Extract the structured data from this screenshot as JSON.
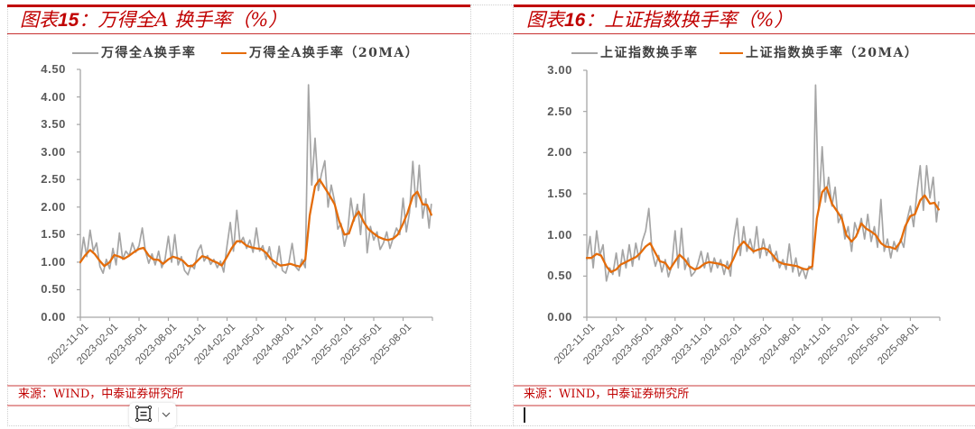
{
  "panels": [
    {
      "title_prefix": "图表",
      "title_number": "15",
      "title_rest": "：万得全A 换手率（%）",
      "source": "来源：WIND，中泰证券研究所"
    },
    {
      "title_prefix": "图表",
      "title_number": "16",
      "title_rest": "：上证指数换手率（%）",
      "source": "来源：WIND，中泰证券研究所"
    }
  ],
  "floating_toolbar": {
    "icons": [
      "text-wrap-icon",
      "chevron-down-icon"
    ]
  },
  "colors": {
    "accent_red": "#c00000",
    "series_gray": "#a5a5a5",
    "series_orange": "#e46c0a",
    "axis": "#a6a6a6"
  },
  "chart_data": [
    {
      "type": "line",
      "title": "图表15：万得全A 换手率（%）",
      "xlabel": "",
      "ylabel": "",
      "ylim": [
        0,
        4.5
      ],
      "grid": false,
      "legend_position": "top",
      "legend": [
        "万得全A换手率",
        "万得全A换手率（20MA）"
      ],
      "yticks": [
        "0.00",
        "0.50",
        "1.00",
        "1.50",
        "2.00",
        "2.50",
        "3.00",
        "3.50",
        "4.00",
        "4.50"
      ],
      "xticks": [
        "2022-11-01",
        "2023-02-01",
        "2023-05-01",
        "2023-08-01",
        "2023-11-01",
        "2024-02-01",
        "2024-05-01",
        "2024-08-01",
        "2024-11-01",
        "2025-02-01",
        "2025-05-01",
        "2025-08-01"
      ],
      "series": [
        {
          "name": "万得全A换手率",
          "color": "#a5a5a5",
          "x": [
            "2022-11-01",
            "2022-11-11",
            "2022-11-21",
            "2022-12-01",
            "2022-12-11",
            "2022-12-21",
            "2023-01-01",
            "2023-01-11",
            "2023-01-21",
            "2023-02-01",
            "2023-02-11",
            "2023-02-21",
            "2023-03-01",
            "2023-03-11",
            "2023-03-21",
            "2023-04-01",
            "2023-04-11",
            "2023-04-21",
            "2023-05-01",
            "2023-05-11",
            "2023-05-21",
            "2023-06-01",
            "2023-06-11",
            "2023-06-21",
            "2023-07-01",
            "2023-07-11",
            "2023-07-21",
            "2023-08-01",
            "2023-08-11",
            "2023-08-21",
            "2023-09-01",
            "2023-09-11",
            "2023-09-21",
            "2023-10-01",
            "2023-10-11",
            "2023-10-21",
            "2023-11-01",
            "2023-11-11",
            "2023-11-21",
            "2023-12-01",
            "2023-12-11",
            "2023-12-21",
            "2024-01-01",
            "2024-01-11",
            "2024-01-21",
            "2024-02-01",
            "2024-02-11",
            "2024-02-21",
            "2024-03-01",
            "2024-03-11",
            "2024-03-21",
            "2024-04-01",
            "2024-04-11",
            "2024-04-21",
            "2024-05-01",
            "2024-05-11",
            "2024-05-21",
            "2024-06-01",
            "2024-06-11",
            "2024-06-21",
            "2024-07-01",
            "2024-07-11",
            "2024-07-21",
            "2024-08-01",
            "2024-08-11",
            "2024-08-21",
            "2024-09-01",
            "2024-09-11",
            "2024-09-21",
            "2024-10-01",
            "2024-10-11",
            "2024-10-21",
            "2024-11-01",
            "2024-11-11",
            "2024-11-21",
            "2024-12-01",
            "2024-12-11",
            "2024-12-21",
            "2025-01-01",
            "2025-01-11",
            "2025-01-21",
            "2025-02-01",
            "2025-02-11",
            "2025-02-21",
            "2025-03-01",
            "2025-03-11",
            "2025-03-21",
            "2025-04-01",
            "2025-04-11",
            "2025-04-21",
            "2025-05-01",
            "2025-05-11",
            "2025-05-21",
            "2025-06-01",
            "2025-06-11",
            "2025-06-21",
            "2025-07-01",
            "2025-07-11",
            "2025-07-21",
            "2025-08-01",
            "2025-08-11",
            "2025-08-21",
            "2025-09-01",
            "2025-09-11",
            "2025-09-21",
            "2025-10-01",
            "2025-10-11",
            "2025-10-21",
            "2025-10-28"
          ],
          "values": [
            0.98,
            1.45,
            1.1,
            1.58,
            1.2,
            1.35,
            0.92,
            0.8,
            1.05,
            0.88,
            1.25,
            0.95,
            1.53,
            1.05,
            1.2,
            1.12,
            1.35,
            1.18,
            1.3,
            1.62,
            1.2,
            0.98,
            1.15,
            0.95,
            1.2,
            0.9,
            1.05,
            1.47,
            1.0,
            1.5,
            0.95,
            1.1,
            0.85,
            0.77,
            0.95,
            0.88,
            1.2,
            1.31,
            1.02,
            1.12,
            0.96,
            1.05,
            0.9,
            1.02,
            0.82,
            1.3,
            1.72,
            1.2,
            1.94,
            1.35,
            1.45,
            1.25,
            1.4,
            1.18,
            1.62,
            1.2,
            1.3,
            1.05,
            1.28,
            0.98,
            0.9,
            1.29,
            0.85,
            0.8,
            1.0,
            1.34,
            0.92,
            0.85,
            1.05,
            0.9,
            4.22,
            2.4,
            3.25,
            2.3,
            2.6,
            2.84,
            2.0,
            2.4,
            2.1,
            1.6,
            1.7,
            1.29,
            1.55,
            2.16,
            1.75,
            2.05,
            1.5,
            2.24,
            1.17,
            1.65,
            1.4,
            1.55,
            1.23,
            1.35,
            1.55,
            1.25,
            1.45,
            1.62,
            1.5,
            2.16,
            1.55,
            1.9,
            2.83,
            2.0,
            2.76,
            1.8,
            2.15,
            1.62,
            2.05
          ]
        },
        {
          "name": "万得全A换手率（20MA）",
          "color": "#e46c0a",
          "x": [
            "2022-11-01",
            "2022-11-15",
            "2022-12-01",
            "2022-12-15",
            "2023-01-01",
            "2023-01-15",
            "2023-02-01",
            "2023-02-15",
            "2023-03-01",
            "2023-03-15",
            "2023-04-01",
            "2023-04-15",
            "2023-05-01",
            "2023-05-15",
            "2023-06-01",
            "2023-06-15",
            "2023-07-01",
            "2023-07-15",
            "2023-08-01",
            "2023-08-15",
            "2023-09-01",
            "2023-09-15",
            "2023-10-01",
            "2023-10-15",
            "2023-11-01",
            "2023-11-15",
            "2023-12-01",
            "2023-12-15",
            "2024-01-01",
            "2024-01-15",
            "2024-02-01",
            "2024-02-15",
            "2024-03-01",
            "2024-03-15",
            "2024-04-01",
            "2024-04-15",
            "2024-05-01",
            "2024-05-15",
            "2024-06-01",
            "2024-06-15",
            "2024-07-01",
            "2024-07-15",
            "2024-08-01",
            "2024-08-15",
            "2024-09-01",
            "2024-09-15",
            "2024-10-01",
            "2024-10-15",
            "2024-11-01",
            "2024-11-15",
            "2024-12-01",
            "2024-12-15",
            "2025-01-01",
            "2025-01-15",
            "2025-02-01",
            "2025-02-15",
            "2025-03-01",
            "2025-03-15",
            "2025-04-01",
            "2025-04-15",
            "2025-05-01",
            "2025-05-15",
            "2025-06-01",
            "2025-06-15",
            "2025-07-01",
            "2025-07-15",
            "2025-08-01",
            "2025-08-15",
            "2025-09-01",
            "2025-09-15",
            "2025-10-01",
            "2025-10-15",
            "2025-10-28"
          ],
          "values": [
            1.0,
            1.12,
            1.22,
            1.15,
            1.02,
            0.93,
            1.0,
            1.13,
            1.1,
            1.06,
            1.12,
            1.18,
            1.24,
            1.26,
            1.12,
            1.05,
            1.04,
            0.97,
            1.05,
            1.1,
            1.07,
            1.03,
            0.93,
            0.93,
            1.03,
            1.11,
            1.08,
            1.03,
            0.99,
            0.94,
            1.1,
            1.25,
            1.38,
            1.38,
            1.3,
            1.27,
            1.25,
            1.24,
            1.17,
            1.06,
            0.99,
            0.94,
            0.95,
            0.97,
            0.94,
            0.92,
            1.05,
            1.85,
            2.38,
            2.5,
            2.35,
            2.22,
            2.05,
            1.75,
            1.5,
            1.52,
            1.8,
            1.92,
            1.72,
            1.6,
            1.52,
            1.46,
            1.42,
            1.4,
            1.43,
            1.5,
            1.7,
            1.9,
            2.2,
            2.28,
            2.05,
            2.04,
            1.86
          ]
        }
      ]
    },
    {
      "type": "line",
      "title": "图表16：上证指数换手率（%）",
      "xlabel": "",
      "ylabel": "",
      "ylim": [
        0,
        3.0
      ],
      "grid": false,
      "legend_position": "top",
      "legend": [
        "上证指数换手率",
        "上证指数换手率（20MA）"
      ],
      "yticks": [
        "0.00",
        "0.50",
        "1.00",
        "1.50",
        "2.00",
        "2.50",
        "3.00"
      ],
      "xticks": [
        "2022-11-01",
        "2023-02-01",
        "2023-05-01",
        "2023-08-01",
        "2023-11-01",
        "2024-02-01",
        "2024-05-01",
        "2024-08-01",
        "2024-11-01",
        "2025-02-01",
        "2025-05-01",
        "2025-08-01"
      ],
      "series": [
        {
          "name": "上证指数换手率",
          "color": "#a5a5a5",
          "x": [
            "2022-11-01",
            "2022-11-11",
            "2022-11-21",
            "2022-12-01",
            "2022-12-11",
            "2022-12-21",
            "2023-01-01",
            "2023-01-11",
            "2023-01-21",
            "2023-02-01",
            "2023-02-11",
            "2023-02-21",
            "2023-03-01",
            "2023-03-11",
            "2023-03-21",
            "2023-04-01",
            "2023-04-11",
            "2023-04-21",
            "2023-05-01",
            "2023-05-11",
            "2023-05-21",
            "2023-06-01",
            "2023-06-11",
            "2023-06-21",
            "2023-07-01",
            "2023-07-11",
            "2023-07-21",
            "2023-08-01",
            "2023-08-11",
            "2023-08-21",
            "2023-09-01",
            "2023-09-11",
            "2023-09-21",
            "2023-10-01",
            "2023-10-11",
            "2023-10-21",
            "2023-11-01",
            "2023-11-11",
            "2023-11-21",
            "2023-12-01",
            "2023-12-11",
            "2023-12-21",
            "2024-01-01",
            "2024-01-11",
            "2024-01-21",
            "2024-02-01",
            "2024-02-11",
            "2024-02-21",
            "2024-03-01",
            "2024-03-11",
            "2024-03-21",
            "2024-04-01",
            "2024-04-11",
            "2024-04-21",
            "2024-05-01",
            "2024-05-11",
            "2024-05-21",
            "2024-06-01",
            "2024-06-11",
            "2024-06-21",
            "2024-07-01",
            "2024-07-11",
            "2024-07-21",
            "2024-08-01",
            "2024-08-11",
            "2024-08-21",
            "2024-09-01",
            "2024-09-11",
            "2024-09-21",
            "2024-10-01",
            "2024-10-11",
            "2024-10-21",
            "2024-11-01",
            "2024-11-11",
            "2024-11-21",
            "2024-12-01",
            "2024-12-11",
            "2024-12-21",
            "2025-01-01",
            "2025-01-11",
            "2025-01-21",
            "2025-02-01",
            "2025-02-11",
            "2025-02-21",
            "2025-03-01",
            "2025-03-11",
            "2025-03-21",
            "2025-04-01",
            "2025-04-11",
            "2025-04-21",
            "2025-05-01",
            "2025-05-11",
            "2025-05-21",
            "2025-06-01",
            "2025-06-11",
            "2025-06-21",
            "2025-07-01",
            "2025-07-11",
            "2025-07-21",
            "2025-08-01",
            "2025-08-11",
            "2025-08-21",
            "2025-09-01",
            "2025-09-11",
            "2025-09-21",
            "2025-10-01",
            "2025-10-11",
            "2025-10-21",
            "2025-10-28"
          ],
          "values": [
            0.7,
            0.98,
            0.6,
            1.05,
            0.75,
            0.88,
            0.44,
            0.6,
            0.52,
            0.78,
            0.5,
            0.82,
            0.6,
            0.88,
            0.62,
            0.9,
            0.7,
            0.92,
            1.05,
            1.32,
            0.8,
            0.62,
            0.75,
            0.55,
            0.7,
            0.49,
            0.62,
            1.05,
            0.6,
            1.08,
            0.58,
            0.72,
            0.5,
            0.55,
            0.65,
            0.8,
            0.6,
            0.78,
            0.55,
            0.72,
            0.6,
            0.7,
            0.52,
            0.68,
            0.5,
            0.95,
            1.2,
            0.75,
            1.1,
            0.8,
            0.95,
            0.78,
            1.1,
            0.72,
            0.95,
            0.75,
            0.88,
            0.68,
            0.8,
            0.6,
            0.7,
            0.58,
            0.89,
            0.55,
            0.72,
            0.5,
            0.6,
            0.47,
            0.62,
            0.58,
            2.82,
            1.3,
            2.07,
            1.4,
            1.7,
            1.35,
            1.58,
            1.15,
            1.25,
            0.95,
            1.1,
            0.8,
            1.15,
            1.02,
            1.2,
            0.95,
            1.25,
            0.92,
            1.1,
            0.85,
            1.43,
            0.8,
            0.95,
            0.72,
            0.92,
            0.8,
            0.95,
            0.85,
            1.18,
            1.35,
            1.1,
            1.5,
            1.84,
            1.3,
            1.84,
            1.45,
            1.7,
            1.16,
            1.4
          ]
        },
        {
          "name": "上证指数换手率（20MA）",
          "color": "#e46c0a",
          "x": [
            "2022-11-01",
            "2022-11-15",
            "2022-12-01",
            "2022-12-15",
            "2023-01-01",
            "2023-01-15",
            "2023-02-01",
            "2023-02-15",
            "2023-03-01",
            "2023-03-15",
            "2023-04-01",
            "2023-04-15",
            "2023-05-01",
            "2023-05-15",
            "2023-06-01",
            "2023-06-15",
            "2023-07-01",
            "2023-07-15",
            "2023-08-01",
            "2023-08-15",
            "2023-09-01",
            "2023-09-15",
            "2023-10-01",
            "2023-10-15",
            "2023-11-01",
            "2023-11-15",
            "2023-12-01",
            "2023-12-15",
            "2024-01-01",
            "2024-01-15",
            "2024-02-01",
            "2024-02-15",
            "2024-03-01",
            "2024-03-15",
            "2024-04-01",
            "2024-04-15",
            "2024-05-01",
            "2024-05-15",
            "2024-06-01",
            "2024-06-15",
            "2024-07-01",
            "2024-07-15",
            "2024-08-01",
            "2024-08-15",
            "2024-09-01",
            "2024-09-15",
            "2024-10-01",
            "2024-10-15",
            "2024-11-01",
            "2024-11-15",
            "2024-12-01",
            "2024-12-15",
            "2025-01-01",
            "2025-01-15",
            "2025-02-01",
            "2025-02-15",
            "2025-03-01",
            "2025-03-15",
            "2025-04-01",
            "2025-04-15",
            "2025-05-01",
            "2025-05-15",
            "2025-06-01",
            "2025-06-15",
            "2025-07-01",
            "2025-07-15",
            "2025-08-01",
            "2025-08-15",
            "2025-09-01",
            "2025-09-15",
            "2025-10-01",
            "2025-10-15",
            "2025-10-28"
          ],
          "values": [
            0.72,
            0.72,
            0.77,
            0.75,
            0.62,
            0.55,
            0.58,
            0.64,
            0.67,
            0.7,
            0.73,
            0.78,
            0.86,
            0.9,
            0.78,
            0.68,
            0.66,
            0.58,
            0.68,
            0.76,
            0.7,
            0.62,
            0.58,
            0.6,
            0.65,
            0.67,
            0.66,
            0.65,
            0.63,
            0.59,
            0.72,
            0.85,
            0.92,
            0.86,
            0.8,
            0.82,
            0.84,
            0.82,
            0.75,
            0.68,
            0.65,
            0.64,
            0.63,
            0.62,
            0.59,
            0.58,
            0.62,
            1.2,
            1.52,
            1.58,
            1.38,
            1.3,
            1.2,
            1.0,
            0.92,
            0.98,
            1.14,
            1.08,
            1.04,
            1.0,
            0.9,
            0.86,
            0.85,
            0.83,
            0.92,
            1.1,
            1.23,
            1.25,
            1.42,
            1.48,
            1.38,
            1.39,
            1.31
          ]
        }
      ]
    }
  ]
}
